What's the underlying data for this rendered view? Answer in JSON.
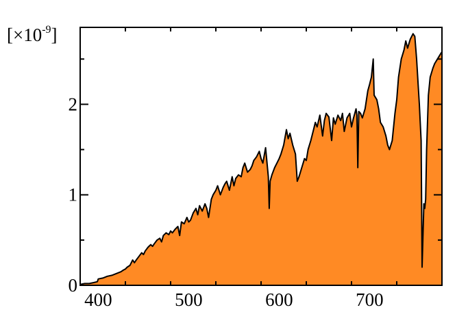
{
  "chart_data": {
    "type": "area",
    "title": "",
    "xlabel": "",
    "ylabel": "",
    "y_scale_label": {
      "prefix": "[×10",
      "exponent": "-9",
      "suffix": "]"
    },
    "xlim": [
      380,
      780
    ],
    "ylim": [
      0,
      2.85
    ],
    "x_ticks": [
      400,
      500,
      600,
      700
    ],
    "y_ticks": [
      0,
      1,
      2
    ],
    "x_tick_labels": [
      "400",
      "500",
      "600",
      "700"
    ],
    "y_tick_labels": [
      "0",
      "1",
      "2"
    ],
    "grid": false,
    "fill_color": "#ff8a24",
    "line_color": "#000000",
    "series": [
      {
        "x": [
          380,
          385,
          390,
          395,
          399,
          400,
          405,
          410,
          415,
          420,
          425,
          428,
          430,
          432,
          435,
          438,
          440,
          442,
          445,
          448,
          450,
          452,
          455,
          458,
          460,
          462,
          465,
          468,
          470,
          472,
          475,
          478,
          480,
          482,
          485,
          488,
          490,
          492,
          495,
          498,
          500,
          502,
          505,
          508,
          510,
          512,
          515,
          518,
          520,
          522,
          525,
          527,
          530,
          532,
          535,
          538,
          540,
          542,
          545,
          548,
          550,
          552,
          555,
          558,
          560,
          562,
          565,
          568,
          570,
          572,
          575,
          578,
          580,
          582,
          585,
          588,
          589,
          590,
          592,
          595,
          598,
          600,
          602,
          605,
          608,
          610,
          612,
          615,
          618,
          620,
          622,
          625,
          628,
          630,
          632,
          635,
          638,
          640,
          642,
          645,
          648,
          650,
          652,
          655,
          658,
          660,
          662,
          665,
          668,
          670,
          672,
          675,
          678,
          680,
          682,
          685,
          686,
          687,
          688,
          690,
          692,
          695,
          698,
          700,
          702,
          704,
          705,
          708,
          710,
          712,
          715,
          718,
          720,
          722,
          725,
          728,
          730,
          732,
          735,
          738,
          740,
          742,
          745,
          748,
          750,
          752,
          755,
          757,
          758,
          760,
          761,
          762,
          763,
          765,
          767,
          770,
          772,
          775,
          778,
          780
        ],
        "y": [
          0.01,
          0.02,
          0.02,
          0.03,
          0.04,
          0.07,
          0.08,
          0.1,
          0.11,
          0.13,
          0.15,
          0.17,
          0.18,
          0.2,
          0.22,
          0.28,
          0.25,
          0.28,
          0.32,
          0.36,
          0.34,
          0.38,
          0.42,
          0.45,
          0.43,
          0.46,
          0.5,
          0.52,
          0.48,
          0.55,
          0.58,
          0.56,
          0.6,
          0.58,
          0.62,
          0.65,
          0.55,
          0.7,
          0.68,
          0.75,
          0.7,
          0.72,
          0.8,
          0.85,
          0.78,
          0.88,
          0.82,
          0.9,
          0.85,
          0.75,
          0.95,
          1.0,
          1.05,
          1.1,
          1.0,
          1.08,
          1.12,
          1.15,
          1.05,
          1.2,
          1.1,
          1.18,
          1.22,
          1.2,
          1.3,
          1.35,
          1.25,
          1.28,
          1.32,
          1.38,
          1.42,
          1.48,
          1.4,
          1.35,
          1.52,
          1.2,
          0.85,
          1.15,
          1.22,
          1.3,
          1.36,
          1.4,
          1.45,
          1.55,
          1.72,
          1.62,
          1.68,
          1.55,
          1.45,
          1.15,
          1.2,
          1.3,
          1.4,
          1.38,
          1.5,
          1.6,
          1.72,
          1.8,
          1.75,
          1.88,
          1.65,
          1.82,
          1.9,
          1.86,
          1.6,
          1.85,
          1.78,
          1.88,
          1.82,
          1.9,
          1.7,
          1.85,
          1.9,
          1.75,
          1.84,
          1.95,
          1.88,
          1.3,
          1.92,
          1.9,
          1.85,
          1.95,
          2.15,
          2.22,
          2.3,
          2.5,
          2.1,
          2.05,
          1.95,
          1.8,
          1.75,
          1.65,
          1.55,
          1.5,
          1.6,
          1.9,
          2.05,
          2.3,
          2.5,
          2.6,
          2.7,
          2.62,
          2.72,
          2.78,
          2.75,
          2.5,
          2.0,
          1.6,
          0.2,
          0.9,
          0.85,
          0.95,
          1.5,
          2.1,
          2.3,
          2.4,
          2.45,
          2.5,
          2.55,
          2.58
        ]
      }
    ]
  }
}
